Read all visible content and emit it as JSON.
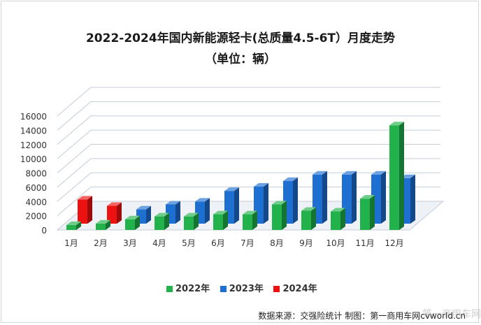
{
  "title_line1": "2022-2024年国内新能源轻卡(总质量4.5-6T）月度走势",
  "title_line2": "（单位：辆）",
  "source": "数据来源：交强险统计   制图：第一商用车网cvworld.cn",
  "watermark": "第一商用车网",
  "colors": {
    "2022年": "#21b24b",
    "2023年": "#1e6fd2",
    "2024年": "#ee1111"
  },
  "chart_data": {
    "type": "bar",
    "title": "2022-2024年国内新能源轻卡(总质量4.5-6T）月度走势",
    "subtitle": "（单位：辆）",
    "categories": [
      "1月",
      "2月",
      "3月",
      "4月",
      "5月",
      "6月",
      "7月",
      "8月",
      "9月",
      "10月",
      "11月",
      "12月"
    ],
    "y_ticks": [
      0,
      2000,
      4000,
      6000,
      8000,
      10000,
      12000,
      14000,
      16000
    ],
    "ylim": [
      0,
      16000
    ],
    "legend_position": "bottom",
    "series": [
      {
        "name": "2022年",
        "values": [
          700,
          900,
          1500,
          1900,
          1900,
          2200,
          2200,
          3600,
          2700,
          2600,
          4400,
          14700
        ]
      },
      {
        "name": "2023年",
        "values": [
          800,
          1000,
          2000,
          2700,
          3100,
          4600,
          5200,
          6000,
          6900,
          6900,
          6900,
          6400
        ]
      },
      {
        "name": "2024年",
        "values": [
          3400,
          2500,
          null,
          null,
          null,
          null,
          null,
          null,
          null,
          null,
          null,
          null
        ]
      }
    ]
  }
}
